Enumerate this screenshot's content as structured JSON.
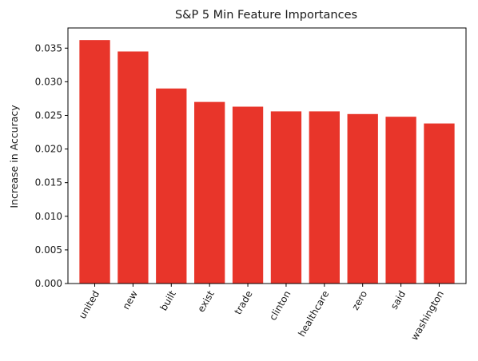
{
  "chart_data": {
    "type": "bar",
    "title": "S&P 5 Min Feature Importances",
    "xlabel": "",
    "ylabel": "Increase in Accuracy",
    "categories": [
      "united",
      "new",
      "built",
      "exist",
      "trade",
      "clinton",
      "healthcare",
      "zero",
      "said",
      "washington"
    ],
    "values": [
      0.0362,
      0.0345,
      0.029,
      0.027,
      0.0263,
      0.0256,
      0.0256,
      0.0252,
      0.0248,
      0.0238
    ],
    "ylim": [
      0,
      0.038
    ],
    "yticks": [
      0.0,
      0.005,
      0.01,
      0.015,
      0.02,
      0.025,
      0.03,
      0.035
    ],
    "ytick_labels": [
      "0.000",
      "0.005",
      "0.010",
      "0.015",
      "0.020",
      "0.025",
      "0.030",
      "0.035"
    ],
    "bar_color": "#e8352a",
    "grid": false,
    "legend": "none"
  }
}
